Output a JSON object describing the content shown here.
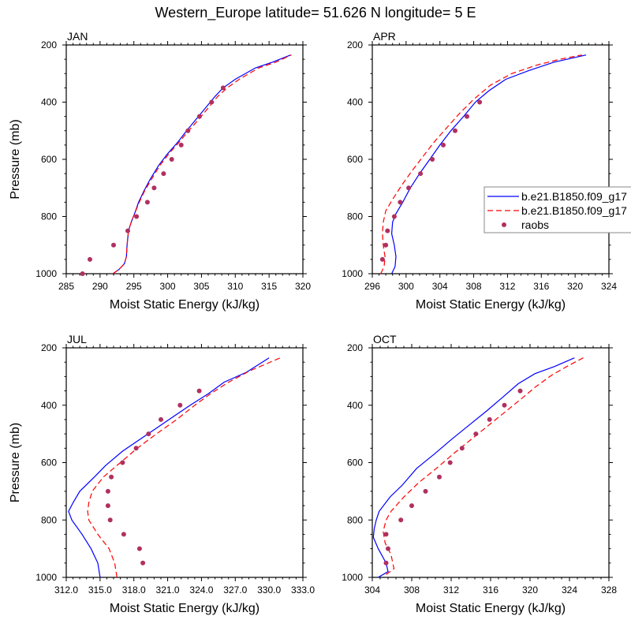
{
  "figure_title": "Western_Europe  latitude= 51.626 N longitude= 5 E",
  "legend": {
    "entries": [
      {
        "label": "b.e21.B1850.f09_g17",
        "color": "#0000ff",
        "style": "solid"
      },
      {
        "label": "b.e21.B1850.f09_g17",
        "color": "#ff0000",
        "style": "dashed"
      },
      {
        "label": "raobs",
        "color": "#b03060",
        "style": "marker"
      }
    ]
  },
  "chart_data": [
    {
      "type": "line",
      "title": "JAN",
      "xlabel": "Moist Static Energy (kJ/kg)",
      "ylabel": "Pressure (mb)",
      "xlim": [
        285,
        320
      ],
      "ylim": [
        1000,
        200
      ],
      "xticks": [
        285,
        290,
        295,
        300,
        305,
        310,
        315,
        320
      ],
      "xtick_labels": [
        "285",
        "290",
        "295",
        "300",
        "305",
        "310",
        "315",
        "320"
      ],
      "yticks": [
        200,
        400,
        600,
        800,
        1000
      ],
      "ytick_labels": [
        "200",
        "400",
        "600",
        "800",
        "1000"
      ],
      "series": [
        {
          "name": "b.e21.B1850.f09_g17",
          "color": "#0000ff",
          "style": "solid",
          "points": [
            [
              291.9,
              1000
            ],
            [
              292.8,
              985
            ],
            [
              293.6,
              965
            ],
            [
              293.9,
              940
            ],
            [
              294.0,
              900
            ],
            [
              294.2,
              850
            ],
            [
              294.6,
              820
            ],
            [
              295.1,
              790
            ],
            [
              295.7,
              750
            ],
            [
              296.5,
              710
            ],
            [
              297.4,
              670
            ],
            [
              298.7,
              620
            ],
            [
              300.0,
              580
            ],
            [
              301.5,
              540
            ],
            [
              302.8,
              500
            ],
            [
              304.2,
              460
            ],
            [
              305.6,
              420
            ],
            [
              307.0,
              380
            ],
            [
              308.2,
              350
            ],
            [
              310.0,
              320
            ],
            [
              313.0,
              280
            ],
            [
              315.5,
              260
            ],
            [
              318.2,
              235
            ]
          ]
        },
        {
          "name": "b.e21.B1850.f09_g17",
          "color": "#ff0000",
          "style": "dashed",
          "points": [
            [
              291.9,
              1000
            ],
            [
              292.8,
              985
            ],
            [
              293.6,
              965
            ],
            [
              293.9,
              940
            ],
            [
              294.0,
              900
            ],
            [
              294.2,
              850
            ],
            [
              294.6,
              820
            ],
            [
              295.1,
              790
            ],
            [
              295.8,
              750
            ],
            [
              296.6,
              710
            ],
            [
              297.6,
              670
            ],
            [
              298.9,
              620
            ],
            [
              300.2,
              580
            ],
            [
              301.7,
              540
            ],
            [
              303.1,
              500
            ],
            [
              304.6,
              460
            ],
            [
              306.0,
              420
            ],
            [
              307.4,
              380
            ],
            [
              308.8,
              350
            ],
            [
              310.6,
              320
            ],
            [
              313.5,
              280
            ],
            [
              316.0,
              260
            ],
            [
              318.3,
              235
            ]
          ]
        },
        {
          "name": "raobs",
          "color": "#b03060",
          "style": "marker",
          "points": [
            [
              287.4,
              1000
            ],
            [
              288.5,
              950
            ],
            [
              292.0,
              900
            ],
            [
              294.1,
              850
            ],
            [
              295.4,
              800
            ],
            [
              297.0,
              750
            ],
            [
              298.0,
              700
            ],
            [
              299.4,
              650
            ],
            [
              300.6,
              600
            ],
            [
              302.0,
              550
            ],
            [
              303.0,
              500
            ],
            [
              304.7,
              450
            ],
            [
              306.5,
              400
            ],
            [
              308.2,
              350
            ]
          ]
        }
      ]
    },
    {
      "type": "line",
      "title": "APR",
      "xlabel": "Moist Static Energy (kJ/kg)",
      "ylabel": "",
      "xlim": [
        296,
        324
      ],
      "ylim": [
        1000,
        200
      ],
      "xticks": [
        296,
        300,
        304,
        308,
        312,
        316,
        320,
        324
      ],
      "xtick_labels": [
        "296",
        "300",
        "304",
        "308",
        "312",
        "316",
        "320",
        "324"
      ],
      "yticks": [
        200,
        400,
        600,
        800,
        1000
      ],
      "ytick_labels": [
        "200",
        "400",
        "600",
        "800",
        "1000"
      ],
      "series": [
        {
          "name": "b.e21.B1850.f09_g17",
          "color": "#0000ff",
          "style": "solid",
          "points": [
            [
              298.3,
              1000
            ],
            [
              298.7,
              975
            ],
            [
              298.8,
              940
            ],
            [
              298.6,
              900
            ],
            [
              298.3,
              860
            ],
            [
              298.4,
              820
            ],
            [
              298.8,
              790
            ],
            [
              299.6,
              750
            ],
            [
              300.5,
              700
            ],
            [
              301.6,
              650
            ],
            [
              302.8,
              600
            ],
            [
              304.0,
              550
            ],
            [
              305.3,
              500
            ],
            [
              306.8,
              450
            ],
            [
              308.2,
              400
            ],
            [
              309.8,
              360
            ],
            [
              311.8,
              320
            ],
            [
              314.5,
              290
            ],
            [
              317.5,
              260
            ],
            [
              321.3,
              235
            ]
          ]
        },
        {
          "name": "b.e21.B1850.f09_g17",
          "color": "#ff0000",
          "style": "dashed",
          "points": [
            [
              297.0,
              1000
            ],
            [
              297.4,
              975
            ],
            [
              297.5,
              940
            ],
            [
              297.3,
              900
            ],
            [
              297.2,
              860
            ],
            [
              297.3,
              820
            ],
            [
              297.6,
              780
            ],
            [
              298.4,
              740
            ],
            [
              299.5,
              690
            ],
            [
              300.7,
              640
            ],
            [
              302.0,
              590
            ],
            [
              303.3,
              540
            ],
            [
              304.8,
              490
            ],
            [
              306.3,
              440
            ],
            [
              308.0,
              390
            ],
            [
              310.0,
              340
            ],
            [
              312.5,
              300
            ],
            [
              315.5,
              270
            ],
            [
              318.2,
              250
            ],
            [
              320.8,
              235
            ]
          ]
        },
        {
          "name": "raobs",
          "color": "#b03060",
          "style": "marker",
          "points": [
            [
              297.2,
              950
            ],
            [
              297.6,
              900
            ],
            [
              297.8,
              850
            ],
            [
              298.6,
              800
            ],
            [
              299.3,
              750
            ],
            [
              300.3,
              700
            ],
            [
              301.7,
              650
            ],
            [
              303.1,
              600
            ],
            [
              304.4,
              550
            ],
            [
              305.8,
              500
            ],
            [
              307.2,
              450
            ],
            [
              308.7,
              400
            ]
          ]
        }
      ]
    },
    {
      "type": "line",
      "title": "JUL",
      "xlabel": "Moist Static Energy (kJ/kg)",
      "ylabel": "Pressure (mb)",
      "xlim": [
        312,
        333
      ],
      "ylim": [
        1000,
        200
      ],
      "xticks": [
        312,
        315,
        318,
        321,
        324,
        327,
        330,
        333
      ],
      "xtick_labels": [
        "312.0",
        "315.0",
        "318.0",
        "321.0",
        "324.0",
        "327.0",
        "330.0",
        "333.0"
      ],
      "yticks": [
        200,
        400,
        600,
        800,
        1000
      ],
      "ytick_labels": [
        "200",
        "400",
        "600",
        "800",
        "1000"
      ],
      "series": [
        {
          "name": "b.e21.B1850.f09_g17",
          "color": "#0000ff",
          "style": "solid",
          "points": [
            [
              315.0,
              1000
            ],
            [
              314.8,
              950
            ],
            [
              314.2,
              900
            ],
            [
              313.4,
              850
            ],
            [
              312.5,
              800
            ],
            [
              312.2,
              770
            ],
            [
              312.6,
              740
            ],
            [
              313.2,
              700
            ],
            [
              314.5,
              650
            ],
            [
              315.5,
              610
            ],
            [
              317.0,
              560
            ],
            [
              318.5,
              520
            ],
            [
              320.0,
              480
            ],
            [
              321.5,
              440
            ],
            [
              323.0,
              400
            ],
            [
              324.6,
              360
            ],
            [
              326.0,
              320
            ],
            [
              328.0,
              285
            ],
            [
              330.0,
              235
            ]
          ]
        },
        {
          "name": "b.e21.B1850.f09_g17",
          "color": "#ff0000",
          "style": "dashed",
          "points": [
            [
              316.5,
              1000
            ],
            [
              316.3,
              950
            ],
            [
              315.8,
              900
            ],
            [
              314.8,
              850
            ],
            [
              314.0,
              800
            ],
            [
              313.9,
              770
            ],
            [
              314.0,
              740
            ],
            [
              314.3,
              700
            ],
            [
              315.3,
              650
            ],
            [
              316.8,
              600
            ],
            [
              318.3,
              550
            ],
            [
              320.0,
              500
            ],
            [
              321.8,
              450
            ],
            [
              323.4,
              400
            ],
            [
              324.8,
              360
            ],
            [
              326.4,
              320
            ],
            [
              328.3,
              280
            ],
            [
              331.0,
              235
            ]
          ]
        },
        {
          "name": "raobs",
          "color": "#b03060",
          "style": "marker",
          "points": [
            [
              318.8,
              950
            ],
            [
              318.5,
              900
            ],
            [
              317.1,
              850
            ],
            [
              315.9,
              800
            ],
            [
              315.7,
              750
            ],
            [
              315.7,
              700
            ],
            [
              316.0,
              650
            ],
            [
              317.0,
              600
            ],
            [
              318.2,
              550
            ],
            [
              319.3,
              500
            ],
            [
              320.4,
              450
            ],
            [
              322.1,
              400
            ],
            [
              323.8,
              350
            ]
          ]
        }
      ]
    },
    {
      "type": "line",
      "title": "OCT",
      "xlabel": "Moist Static Energy (kJ/kg)",
      "ylabel": "",
      "xlim": [
        304,
        328
      ],
      "ylim": [
        1000,
        200
      ],
      "xticks": [
        304,
        308,
        312,
        316,
        320,
        324,
        328
      ],
      "xtick_labels": [
        "304",
        "308",
        "312",
        "316",
        "320",
        "324",
        "328"
      ],
      "yticks": [
        200,
        400,
        600,
        800,
        1000
      ],
      "ytick_labels": [
        "200",
        "400",
        "600",
        "800",
        "1000"
      ],
      "series": [
        {
          "name": "b.e21.B1850.f09_g17",
          "color": "#0000ff",
          "style": "solid",
          "points": [
            [
              304.6,
              1000
            ],
            [
              305.6,
              980
            ],
            [
              305.4,
              950
            ],
            [
              304.6,
              900
            ],
            [
              304.1,
              860
            ],
            [
              304.2,
              830
            ],
            [
              304.4,
              800
            ],
            [
              304.7,
              770
            ],
            [
              305.8,
              720
            ],
            [
              307.0,
              680
            ],
            [
              308.5,
              620
            ],
            [
              310.3,
              570
            ],
            [
              312.0,
              520
            ],
            [
              313.8,
              470
            ],
            [
              315.6,
              420
            ],
            [
              317.3,
              370
            ],
            [
              318.8,
              325
            ],
            [
              320.5,
              290
            ],
            [
              322.5,
              265
            ],
            [
              324.5,
              235
            ]
          ]
        },
        {
          "name": "b.e21.B1850.f09_g17",
          "color": "#ff0000",
          "style": "dashed",
          "points": [
            [
              305.4,
              990
            ],
            [
              306.2,
              970
            ],
            [
              305.9,
              920
            ],
            [
              305.3,
              880
            ],
            [
              305.1,
              840
            ],
            [
              305.4,
              800
            ],
            [
              305.9,
              770
            ],
            [
              307.2,
              720
            ],
            [
              308.7,
              670
            ],
            [
              310.5,
              620
            ],
            [
              312.2,
              570
            ],
            [
              314.0,
              520
            ],
            [
              315.8,
              470
            ],
            [
              317.6,
              420
            ],
            [
              319.2,
              375
            ],
            [
              320.6,
              335
            ],
            [
              322.2,
              295
            ],
            [
              324.0,
              260
            ],
            [
              325.4,
              235
            ]
          ]
        },
        {
          "name": "raobs",
          "color": "#b03060",
          "style": "marker",
          "points": [
            [
              305.4,
              950
            ],
            [
              305.6,
              900
            ],
            [
              305.4,
              850
            ],
            [
              306.9,
              800
            ],
            [
              308.0,
              750
            ],
            [
              309.4,
              700
            ],
            [
              310.8,
              650
            ],
            [
              311.9,
              600
            ],
            [
              313.1,
              550
            ],
            [
              314.5,
              500
            ],
            [
              315.9,
              450
            ],
            [
              317.4,
              400
            ],
            [
              319.0,
              350
            ]
          ]
        }
      ]
    }
  ]
}
